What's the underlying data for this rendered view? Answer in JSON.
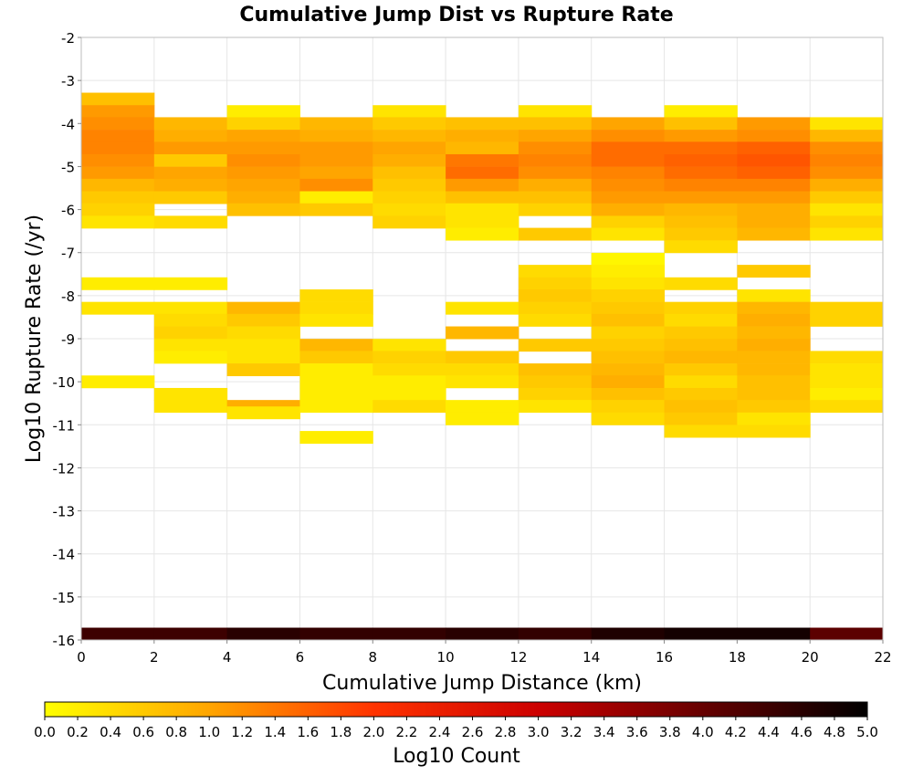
{
  "chart_data": {
    "type": "heatmap",
    "title": "Cumulative Jump Dist vs Rupture Rate",
    "xlabel": "Cumulative Jump Distance (km)",
    "ylabel": "Log10 Rupture Rate (/yr)",
    "colorbar_label": "Log10 Count",
    "xlim": [
      0,
      22
    ],
    "ylim": [
      -16,
      -2
    ],
    "x_bin_width": 2,
    "y_bin_height": 0.2857,
    "grid": true,
    "x_ticks": [
      "0",
      "2",
      "4",
      "6",
      "8",
      "10",
      "12",
      "14",
      "16",
      "18",
      "20",
      "22"
    ],
    "y_ticks": [
      "-2",
      "-3",
      "-4",
      "-5",
      "-6",
      "-7",
      "-8",
      "-9",
      "-10",
      "-11",
      "-12",
      "-13",
      "-14",
      "-15",
      "-16"
    ],
    "colorbar_ticks": [
      "0.0",
      "0.2",
      "0.4",
      "0.6",
      "0.8",
      "1.0",
      "1.2",
      "1.4",
      "1.6",
      "1.8",
      "2.0",
      "2.2",
      "2.4",
      "2.6",
      "2.8",
      "3.0",
      "3.2",
      "3.4",
      "3.6",
      "3.8",
      "4.0",
      "4.2",
      "4.4",
      "4.6",
      "4.8",
      "5.0"
    ],
    "colorbar_range": [
      0,
      5
    ],
    "colorscale": [
      "#ffff00",
      "#ffa500",
      "#ff3300",
      "#cc0000",
      "#660000",
      "#000000"
    ],
    "cells": [
      {
        "x": 0,
        "y": -3.57,
        "v": 0.7
      },
      {
        "x": 0,
        "y": -3.86,
        "v": 1.1
      },
      {
        "x": 0,
        "y": -4.14,
        "v": 1.2
      },
      {
        "x": 0,
        "y": -4.43,
        "v": 1.3
      },
      {
        "x": 0,
        "y": -4.71,
        "v": 1.3
      },
      {
        "x": 0,
        "y": -5.0,
        "v": 1.2
      },
      {
        "x": 0,
        "y": -5.29,
        "v": 1.1
      },
      {
        "x": 0,
        "y": -5.57,
        "v": 0.8
      },
      {
        "x": 0,
        "y": -5.86,
        "v": 0.6
      },
      {
        "x": 0,
        "y": -6.14,
        "v": 0.5
      },
      {
        "x": 0,
        "y": -6.43,
        "v": 0.3
      },
      {
        "x": 0,
        "y": -7.86,
        "v": 0.2
      },
      {
        "x": 0,
        "y": -8.43,
        "v": 0.3
      },
      {
        "x": 0,
        "y": -10.14,
        "v": 0.2
      },
      {
        "x": 2,
        "y": -4.14,
        "v": 0.8
      },
      {
        "x": 2,
        "y": -4.43,
        "v": 0.9
      },
      {
        "x": 2,
        "y": -4.71,
        "v": 1.1
      },
      {
        "x": 2,
        "y": -5.0,
        "v": 0.6
      },
      {
        "x": 2,
        "y": -5.29,
        "v": 1.0
      },
      {
        "x": 2,
        "y": -5.57,
        "v": 0.9
      },
      {
        "x": 2,
        "y": -5.86,
        "v": 0.6
      },
      {
        "x": 2,
        "y": -6.43,
        "v": 0.4
      },
      {
        "x": 2,
        "y": -7.86,
        "v": 0.2
      },
      {
        "x": 2,
        "y": -8.43,
        "v": 0.3
      },
      {
        "x": 2,
        "y": -8.71,
        "v": 0.4
      },
      {
        "x": 2,
        "y": -9.0,
        "v": 0.5
      },
      {
        "x": 2,
        "y": -9.29,
        "v": 0.3
      },
      {
        "x": 2,
        "y": -9.57,
        "v": 0.2
      },
      {
        "x": 2,
        "y": -10.43,
        "v": 0.3
      },
      {
        "x": 2,
        "y": -10.71,
        "v": 0.3
      },
      {
        "x": 4,
        "y": -3.86,
        "v": 0.2
      },
      {
        "x": 4,
        "y": -4.14,
        "v": 0.5
      },
      {
        "x": 4,
        "y": -4.43,
        "v": 1.0
      },
      {
        "x": 4,
        "y": -4.71,
        "v": 1.1
      },
      {
        "x": 4,
        "y": -5.0,
        "v": 1.2
      },
      {
        "x": 4,
        "y": -5.29,
        "v": 1.1
      },
      {
        "x": 4,
        "y": -5.57,
        "v": 1.0
      },
      {
        "x": 4,
        "y": -5.86,
        "v": 0.9
      },
      {
        "x": 4,
        "y": -6.14,
        "v": 0.7
      },
      {
        "x": 4,
        "y": -8.43,
        "v": 0.8
      },
      {
        "x": 4,
        "y": -8.71,
        "v": 0.6
      },
      {
        "x": 4,
        "y": -9.0,
        "v": 0.4
      },
      {
        "x": 4,
        "y": -9.29,
        "v": 0.3
      },
      {
        "x": 4,
        "y": -9.57,
        "v": 0.3
      },
      {
        "x": 4,
        "y": -9.86,
        "v": 0.6
      },
      {
        "x": 4,
        "y": -10.71,
        "v": 0.9
      },
      {
        "x": 4,
        "y": -10.86,
        "v": 0.3
      },
      {
        "x": 6,
        "y": -4.14,
        "v": 0.8
      },
      {
        "x": 6,
        "y": -4.43,
        "v": 0.9
      },
      {
        "x": 6,
        "y": -4.71,
        "v": 1.1
      },
      {
        "x": 6,
        "y": -5.0,
        "v": 1.1
      },
      {
        "x": 6,
        "y": -5.29,
        "v": 1.0
      },
      {
        "x": 6,
        "y": -5.57,
        "v": 1.2
      },
      {
        "x": 6,
        "y": -5.86,
        "v": 0.2
      },
      {
        "x": 6,
        "y": -6.14,
        "v": 0.6
      },
      {
        "x": 6,
        "y": -8.14,
        "v": 0.4
      },
      {
        "x": 6,
        "y": -8.43,
        "v": 0.4
      },
      {
        "x": 6,
        "y": -8.71,
        "v": 0.3
      },
      {
        "x": 6,
        "y": -9.29,
        "v": 0.8
      },
      {
        "x": 6,
        "y": -9.57,
        "v": 0.6
      },
      {
        "x": 6,
        "y": -9.86,
        "v": 0.2
      },
      {
        "x": 6,
        "y": -10.14,
        "v": 0.2
      },
      {
        "x": 6,
        "y": -10.43,
        "v": 0.2
      },
      {
        "x": 6,
        "y": -10.71,
        "v": 0.2
      },
      {
        "x": 6,
        "y": -11.43,
        "v": 0.2
      },
      {
        "x": 8,
        "y": -3.86,
        "v": 0.3
      },
      {
        "x": 8,
        "y": -4.14,
        "v": 0.6
      },
      {
        "x": 8,
        "y": -4.43,
        "v": 0.8
      },
      {
        "x": 8,
        "y": -4.71,
        "v": 1.0
      },
      {
        "x": 8,
        "y": -5.0,
        "v": 0.9
      },
      {
        "x": 8,
        "y": -5.29,
        "v": 0.7
      },
      {
        "x": 8,
        "y": -5.57,
        "v": 0.6
      },
      {
        "x": 8,
        "y": -5.86,
        "v": 0.5
      },
      {
        "x": 8,
        "y": -6.14,
        "v": 0.4
      },
      {
        "x": 8,
        "y": -6.43,
        "v": 0.5
      },
      {
        "x": 8,
        "y": -9.29,
        "v": 0.3
      },
      {
        "x": 8,
        "y": -9.57,
        "v": 0.5
      },
      {
        "x": 8,
        "y": -9.86,
        "v": 0.4
      },
      {
        "x": 8,
        "y": -10.14,
        "v": 0.2
      },
      {
        "x": 8,
        "y": -10.43,
        "v": 0.2
      },
      {
        "x": 8,
        "y": -10.71,
        "v": 0.4
      },
      {
        "x": 10,
        "y": -4.14,
        "v": 0.7
      },
      {
        "x": 10,
        "y": -4.43,
        "v": 0.9
      },
      {
        "x": 10,
        "y": -4.71,
        "v": 0.8
      },
      {
        "x": 10,
        "y": -5.0,
        "v": 1.4
      },
      {
        "x": 10,
        "y": -5.29,
        "v": 1.5
      },
      {
        "x": 10,
        "y": -5.57,
        "v": 1.1
      },
      {
        "x": 10,
        "y": -5.86,
        "v": 0.7
      },
      {
        "x": 10,
        "y": -6.14,
        "v": 0.3
      },
      {
        "x": 10,
        "y": -6.43,
        "v": 0.3
      },
      {
        "x": 10,
        "y": -6.71,
        "v": 0.2
      },
      {
        "x": 10,
        "y": -8.43,
        "v": 0.3
      },
      {
        "x": 10,
        "y": -9.0,
        "v": 0.8
      },
      {
        "x": 10,
        "y": -9.57,
        "v": 0.6
      },
      {
        "x": 10,
        "y": -9.86,
        "v": 0.4
      },
      {
        "x": 10,
        "y": -10.14,
        "v": 0.3
      },
      {
        "x": 10,
        "y": -10.71,
        "v": 0.2
      },
      {
        "x": 10,
        "y": -11.0,
        "v": 0.2
      },
      {
        "x": 12,
        "y": -3.86,
        "v": 0.3
      },
      {
        "x": 12,
        "y": -4.14,
        "v": 0.7
      },
      {
        "x": 12,
        "y": -4.43,
        "v": 1.0
      },
      {
        "x": 12,
        "y": -4.71,
        "v": 1.2
      },
      {
        "x": 12,
        "y": -5.0,
        "v": 1.3
      },
      {
        "x": 12,
        "y": -5.29,
        "v": 1.2
      },
      {
        "x": 12,
        "y": -5.57,
        "v": 0.9
      },
      {
        "x": 12,
        "y": -5.86,
        "v": 0.7
      },
      {
        "x": 12,
        "y": -6.14,
        "v": 0.5
      },
      {
        "x": 12,
        "y": -6.71,
        "v": 0.6
      },
      {
        "x": 12,
        "y": -7.57,
        "v": 0.4
      },
      {
        "x": 12,
        "y": -7.86,
        "v": 0.5
      },
      {
        "x": 12,
        "y": -8.14,
        "v": 0.6
      },
      {
        "x": 12,
        "y": -8.43,
        "v": 0.5
      },
      {
        "x": 12,
        "y": -8.71,
        "v": 0.4
      },
      {
        "x": 12,
        "y": -9.29,
        "v": 0.6
      },
      {
        "x": 12,
        "y": -9.86,
        "v": 0.7
      },
      {
        "x": 12,
        "y": -10.14,
        "v": 0.6
      },
      {
        "x": 12,
        "y": -10.43,
        "v": 0.5
      },
      {
        "x": 12,
        "y": -10.71,
        "v": 0.3
      },
      {
        "x": 14,
        "y": -4.14,
        "v": 1.0
      },
      {
        "x": 14,
        "y": -4.43,
        "v": 1.2
      },
      {
        "x": 14,
        "y": -4.71,
        "v": 1.5
      },
      {
        "x": 14,
        "y": -5.0,
        "v": 1.5
      },
      {
        "x": 14,
        "y": -5.29,
        "v": 1.3
      },
      {
        "x": 14,
        "y": -5.57,
        "v": 1.2
      },
      {
        "x": 14,
        "y": -5.86,
        "v": 1.1
      },
      {
        "x": 14,
        "y": -6.14,
        "v": 0.9
      },
      {
        "x": 14,
        "y": -6.43,
        "v": 0.5
      },
      {
        "x": 14,
        "y": -6.71,
        "v": 0.3
      },
      {
        "x": 14,
        "y": -7.29,
        "v": 0.1
      },
      {
        "x": 14,
        "y": -7.57,
        "v": 0.2
      },
      {
        "x": 14,
        "y": -7.86,
        "v": 0.3
      },
      {
        "x": 14,
        "y": -8.14,
        "v": 0.5
      },
      {
        "x": 14,
        "y": -8.43,
        "v": 0.6
      },
      {
        "x": 14,
        "y": -8.71,
        "v": 0.7
      },
      {
        "x": 14,
        "y": -9.0,
        "v": 0.5
      },
      {
        "x": 14,
        "y": -9.29,
        "v": 0.6
      },
      {
        "x": 14,
        "y": -9.57,
        "v": 0.7
      },
      {
        "x": 14,
        "y": -9.86,
        "v": 0.8
      },
      {
        "x": 14,
        "y": -10.14,
        "v": 0.9
      },
      {
        "x": 14,
        "y": -10.43,
        "v": 0.7
      },
      {
        "x": 14,
        "y": -10.71,
        "v": 0.5
      },
      {
        "x": 14,
        "y": -11.0,
        "v": 0.4
      },
      {
        "x": 16,
        "y": -3.86,
        "v": 0.2
      },
      {
        "x": 16,
        "y": -4.14,
        "v": 0.7
      },
      {
        "x": 16,
        "y": -4.43,
        "v": 1.1
      },
      {
        "x": 16,
        "y": -4.71,
        "v": 1.5
      },
      {
        "x": 16,
        "y": -5.0,
        "v": 1.6
      },
      {
        "x": 16,
        "y": -5.29,
        "v": 1.5
      },
      {
        "x": 16,
        "y": -5.57,
        "v": 1.3
      },
      {
        "x": 16,
        "y": -5.86,
        "v": 1.1
      },
      {
        "x": 16,
        "y": -6.14,
        "v": 0.8
      },
      {
        "x": 16,
        "y": -6.43,
        "v": 0.7
      },
      {
        "x": 16,
        "y": -6.71,
        "v": 0.6
      },
      {
        "x": 16,
        "y": -7.0,
        "v": 0.4
      },
      {
        "x": 16,
        "y": -7.86,
        "v": 0.4
      },
      {
        "x": 16,
        "y": -8.43,
        "v": 0.5
      },
      {
        "x": 16,
        "y": -8.71,
        "v": 0.4
      },
      {
        "x": 16,
        "y": -9.0,
        "v": 0.6
      },
      {
        "x": 16,
        "y": -9.29,
        "v": 0.7
      },
      {
        "x": 16,
        "y": -9.57,
        "v": 0.8
      },
      {
        "x": 16,
        "y": -9.86,
        "v": 0.6
      },
      {
        "x": 16,
        "y": -10.14,
        "v": 0.4
      },
      {
        "x": 16,
        "y": -10.43,
        "v": 0.6
      },
      {
        "x": 16,
        "y": -10.71,
        "v": 0.7
      },
      {
        "x": 16,
        "y": -11.0,
        "v": 0.6
      },
      {
        "x": 16,
        "y": -11.29,
        "v": 0.4
      },
      {
        "x": 18,
        "y": -4.14,
        "v": 1.1
      },
      {
        "x": 18,
        "y": -4.43,
        "v": 1.2
      },
      {
        "x": 18,
        "y": -4.71,
        "v": 1.6
      },
      {
        "x": 18,
        "y": -5.0,
        "v": 1.7
      },
      {
        "x": 18,
        "y": -5.29,
        "v": 1.6
      },
      {
        "x": 18,
        "y": -5.57,
        "v": 1.3
      },
      {
        "x": 18,
        "y": -5.86,
        "v": 1.1
      },
      {
        "x": 18,
        "y": -6.14,
        "v": 0.9
      },
      {
        "x": 18,
        "y": -6.43,
        "v": 0.9
      },
      {
        "x": 18,
        "y": -6.71,
        "v": 0.8
      },
      {
        "x": 18,
        "y": -7.57,
        "v": 0.6
      },
      {
        "x": 18,
        "y": -8.14,
        "v": 0.3
      },
      {
        "x": 18,
        "y": -8.43,
        "v": 0.8
      },
      {
        "x": 18,
        "y": -8.71,
        "v": 0.9
      },
      {
        "x": 18,
        "y": -9.0,
        "v": 0.8
      },
      {
        "x": 18,
        "y": -9.29,
        "v": 0.9
      },
      {
        "x": 18,
        "y": -9.57,
        "v": 0.8
      },
      {
        "x": 18,
        "y": -9.86,
        "v": 0.8
      },
      {
        "x": 18,
        "y": -10.14,
        "v": 0.7
      },
      {
        "x": 18,
        "y": -10.43,
        "v": 0.7
      },
      {
        "x": 18,
        "y": -10.71,
        "v": 0.6
      },
      {
        "x": 18,
        "y": -11.0,
        "v": 0.3
      },
      {
        "x": 18,
        "y": -11.29,
        "v": 0.4
      },
      {
        "x": 20,
        "y": -4.14,
        "v": 0.3
      },
      {
        "x": 20,
        "y": -4.43,
        "v": 0.8
      },
      {
        "x": 20,
        "y": -4.71,
        "v": 1.2
      },
      {
        "x": 20,
        "y": -5.0,
        "v": 1.3
      },
      {
        "x": 20,
        "y": -5.29,
        "v": 1.2
      },
      {
        "x": 20,
        "y": -5.57,
        "v": 0.9
      },
      {
        "x": 20,
        "y": -5.86,
        "v": 0.6
      },
      {
        "x": 20,
        "y": -6.14,
        "v": 0.3
      },
      {
        "x": 20,
        "y": -6.43,
        "v": 0.5
      },
      {
        "x": 20,
        "y": -6.71,
        "v": 0.3
      },
      {
        "x": 20,
        "y": -8.43,
        "v": 0.5
      },
      {
        "x": 20,
        "y": -8.71,
        "v": 0.5
      },
      {
        "x": 20,
        "y": -9.57,
        "v": 0.4
      },
      {
        "x": 20,
        "y": -9.86,
        "v": 0.3
      },
      {
        "x": 20,
        "y": -10.14,
        "v": 0.3
      },
      {
        "x": 20,
        "y": -10.43,
        "v": 0.2
      },
      {
        "x": 20,
        "y": -10.71,
        "v": 0.4
      },
      {
        "x": 0,
        "y": -16.0,
        "v": 4.4
      },
      {
        "x": 2,
        "y": -16.0,
        "v": 4.4
      },
      {
        "x": 4,
        "y": -16.0,
        "v": 4.6
      },
      {
        "x": 6,
        "y": -16.0,
        "v": 4.5
      },
      {
        "x": 8,
        "y": -16.0,
        "v": 4.5
      },
      {
        "x": 10,
        "y": -16.0,
        "v": 4.6
      },
      {
        "x": 12,
        "y": -16.0,
        "v": 4.5
      },
      {
        "x": 14,
        "y": -16.0,
        "v": 4.7
      },
      {
        "x": 16,
        "y": -16.0,
        "v": 4.8
      },
      {
        "x": 18,
        "y": -16.0,
        "v": 4.8
      },
      {
        "x": 20,
        "y": -16.0,
        "v": 4.1
      }
    ]
  }
}
